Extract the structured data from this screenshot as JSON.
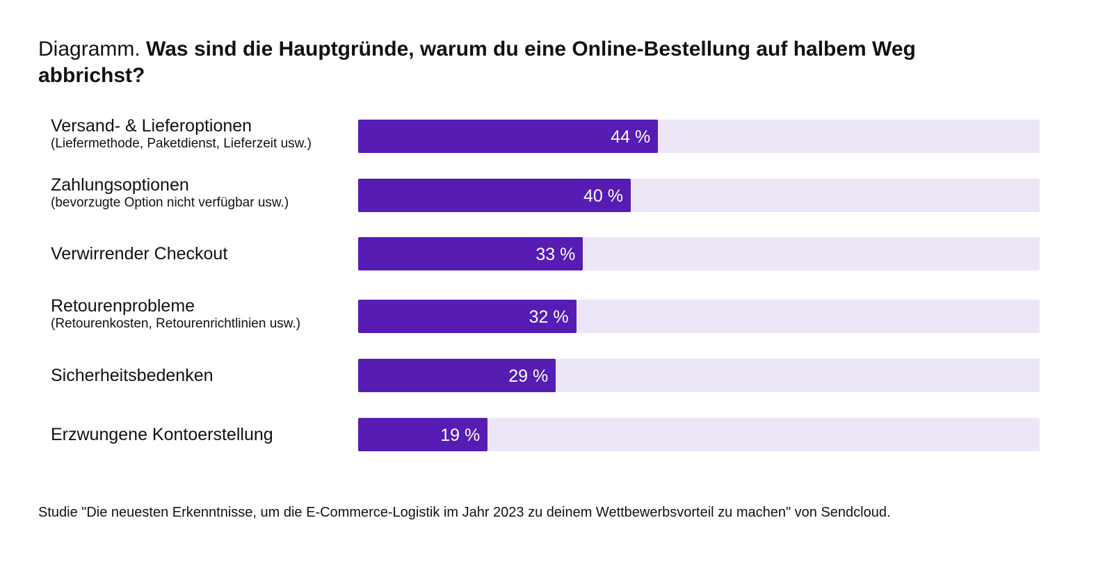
{
  "chart_data": {
    "type": "bar",
    "orientation": "horizontal",
    "title_prefix": "Diagramm.",
    "title": "Was sind die Hauptgründe, warum du eine Online-Bestellung auf halbem Weg abbrichst?",
    "categories": [
      {
        "label": "Versand- & Lieferoptionen",
        "sublabel": "(Liefermethode, Paketdienst, Lieferzeit usw.)"
      },
      {
        "label": "Zahlungsoptionen",
        "sublabel": "(bevorzugte Option nicht verfügbar usw.)"
      },
      {
        "label": "Verwirrender Checkout",
        "sublabel": ""
      },
      {
        "label": "Retourenprobleme",
        "sublabel": "(Retourenkosten, Retourenrichtlinien usw.)"
      },
      {
        "label": "Sicherheitsbedenken",
        "sublabel": ""
      },
      {
        "label": "Erzwungene Kontoerstellung",
        "sublabel": ""
      }
    ],
    "values": [
      44,
      40,
      33,
      32,
      29,
      19
    ],
    "value_labels": [
      "44 %",
      "40 %",
      "33 %",
      "32 %",
      "29 %",
      "19 %"
    ],
    "xlim": [
      0,
      100
    ],
    "unit": "%",
    "grid": false,
    "colors": {
      "bar": "#561cb3",
      "track": "#ede6f7",
      "value_text": "#ffffff"
    },
    "source": "Studie \"Die neuesten Erkenntnisse, um die E-Commerce-Logistik im Jahr 2023 zu deinem Wettbewerbsvorteil zu machen\" von Sendcloud."
  }
}
